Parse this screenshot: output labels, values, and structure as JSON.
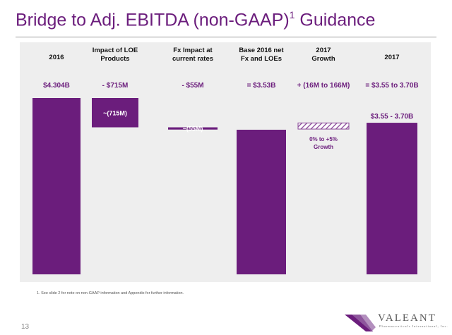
{
  "title": {
    "text": "Bridge to Adj. EBITDA (non-GAAP)",
    "superscript": "1",
    "suffix": "Guidance"
  },
  "chart_data": {
    "type": "bar",
    "subtype": "waterfall",
    "unit": "$B",
    "columns": [
      {
        "header": [
          "2016"
        ],
        "value_label": "$4.304B",
        "bar_label": "",
        "kind": "total",
        "value": 4.304
      },
      {
        "header": [
          "Impact of LOE",
          "Products"
        ],
        "value_label": "- $715M",
        "bar_label": "~(715M)",
        "kind": "decrease",
        "value": -0.715
      },
      {
        "header": [
          "Fx Impact at",
          "current rates"
        ],
        "value_label": "- $55M",
        "bar_label": "~(55M)",
        "kind": "decrease",
        "value": -0.055
      },
      {
        "header": [
          "Base 2016 net",
          "Fx and LOEs"
        ],
        "value_label": "= $3.53B",
        "bar_label": "",
        "kind": "total",
        "value": 3.53
      },
      {
        "header": [
          "2017",
          "Growth"
        ],
        "value_label": "+ (16M to 166M)",
        "bar_label": "0% to +5%",
        "bar_label2": "Growth",
        "kind": "increase",
        "value": [
          0.016,
          0.166
        ]
      },
      {
        "header": [
          "2017"
        ],
        "value_label": "= $3.55 to 3.70B",
        "bar_label": "$3.55 - 3.70B",
        "kind": "total",
        "value": [
          3.55,
          3.7
        ]
      }
    ],
    "colors": {
      "bar": "#6b1d7c",
      "panel": "#eeeeee",
      "hatch": "#8a4a99"
    }
  },
  "footnote": "1. See slide 2 for note on non-GAAP information and Appendix for further information.",
  "page_number": "13",
  "logo": {
    "name": "VALEANT",
    "tagline": "Pharmaceuticals International, Inc."
  }
}
